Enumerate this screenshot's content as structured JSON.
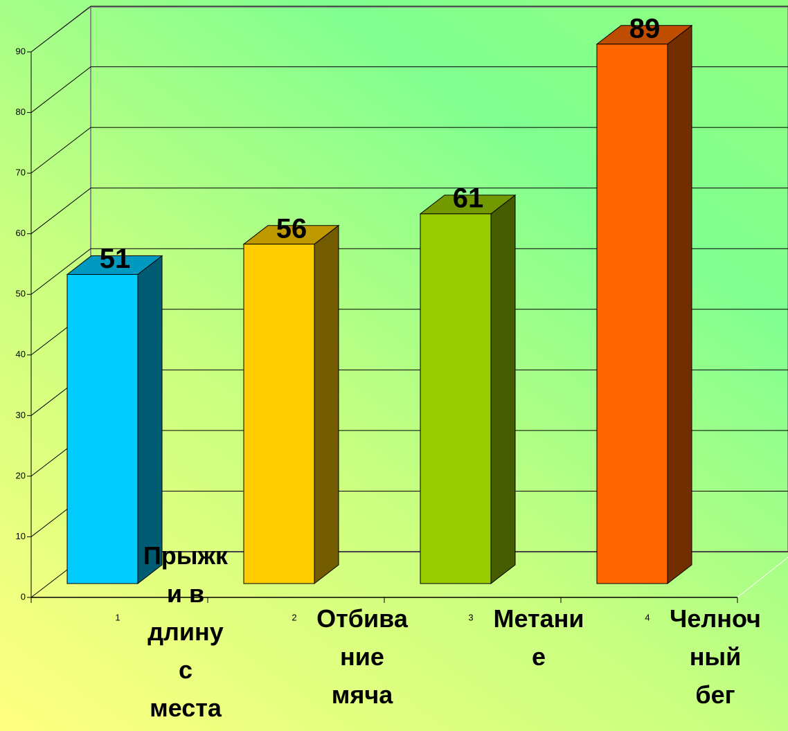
{
  "chart_data": {
    "type": "bar3d",
    "categories": [
      "1",
      "2",
      "3",
      "4"
    ],
    "category_names": [
      "Прыжки в длину с места",
      "Отбивание мяча",
      "Метание",
      "Челночный бег"
    ],
    "values": [
      51,
      56,
      61,
      89
    ],
    "colors": [
      "#00ccff",
      "#ffcc00",
      "#99cc00",
      "#ff6600"
    ],
    "ylim": [
      0,
      90
    ],
    "yticks": [
      0,
      10,
      20,
      30,
      40,
      50,
      60,
      70,
      80,
      90
    ],
    "grid": true
  }
}
